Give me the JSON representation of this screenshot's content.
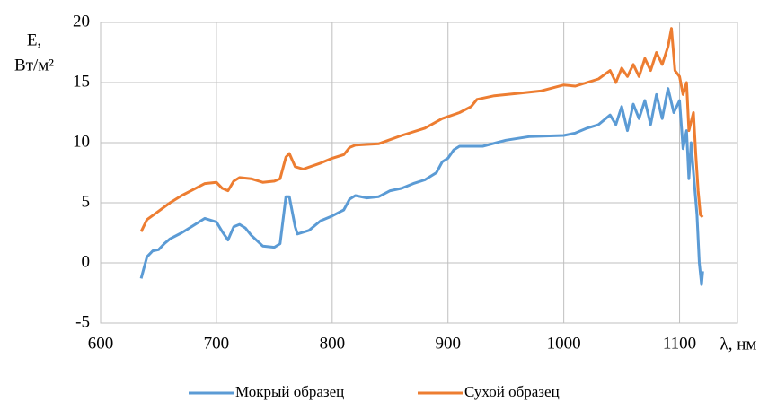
{
  "chart_data": {
    "type": "line",
    "ylabel": [
      "Е,",
      "Вт/м²"
    ],
    "xlabel": "λ, нм",
    "xlim": [
      600,
      1150
    ],
    "xticks": [
      600,
      700,
      800,
      900,
      1000,
      1100
    ],
    "ylim": [
      -5,
      20
    ],
    "yticks": [
      -5,
      0,
      5,
      10,
      15,
      20
    ],
    "grid": true,
    "legend": "bottom",
    "series": [
      {
        "name": "Мокрый образец",
        "color": "#5b9bd5",
        "x": [
          635,
          640,
          645,
          650,
          655,
          660,
          670,
          680,
          690,
          700,
          705,
          710,
          715,
          720,
          725,
          730,
          740,
          750,
          755,
          760,
          763,
          768,
          770,
          780,
          790,
          800,
          810,
          815,
          820,
          830,
          840,
          850,
          860,
          870,
          880,
          890,
          895,
          900,
          905,
          910,
          930,
          950,
          970,
          1000,
          1010,
          1020,
          1030,
          1040,
          1045,
          1050,
          1055,
          1060,
          1065,
          1070,
          1075,
          1080,
          1085,
          1090,
          1095,
          1100,
          1103,
          1106,
          1108,
          1110,
          1112,
          1115,
          1117,
          1119,
          1120
        ],
        "values": [
          -1.3,
          0.5,
          1.0,
          1.1,
          1.6,
          2.0,
          2.5,
          3.1,
          3.7,
          3.4,
          2.6,
          1.9,
          3.0,
          3.2,
          2.9,
          2.3,
          1.4,
          1.3,
          1.6,
          5.5,
          5.5,
          3.0,
          2.4,
          2.7,
          3.5,
          3.9,
          4.4,
          5.3,
          5.6,
          5.4,
          5.5,
          6.0,
          6.2,
          6.6,
          6.9,
          7.5,
          8.4,
          8.7,
          9.4,
          9.7,
          9.7,
          10.2,
          10.5,
          10.6,
          10.8,
          11.2,
          11.5,
          12.3,
          11.5,
          13.0,
          11.0,
          13.2,
          12.0,
          13.5,
          11.5,
          14.0,
          12.0,
          14.5,
          12.5,
          13.5,
          9.5,
          11.0,
          7.0,
          10.0,
          7.5,
          4.0,
          0,
          -1.8,
          -0.7
        ]
      },
      {
        "name": "Сухой образец",
        "color": "#ed7d31",
        "x": [
          635,
          640,
          650,
          660,
          670,
          680,
          690,
          700,
          705,
          710,
          715,
          720,
          730,
          740,
          750,
          755,
          760,
          763,
          768,
          775,
          790,
          800,
          810,
          815,
          820,
          840,
          860,
          880,
          895,
          910,
          920,
          925,
          940,
          960,
          980,
          1000,
          1010,
          1020,
          1030,
          1040,
          1045,
          1050,
          1055,
          1060,
          1065,
          1070,
          1075,
          1080,
          1085,
          1090,
          1093,
          1096,
          1100,
          1103,
          1106,
          1108,
          1112,
          1114,
          1116,
          1118,
          1120
        ],
        "values": [
          2.6,
          3.6,
          4.3,
          5.0,
          5.6,
          6.1,
          6.6,
          6.7,
          6.2,
          6.0,
          6.8,
          7.1,
          7.0,
          6.7,
          6.8,
          7.0,
          8.8,
          9.1,
          8.0,
          7.8,
          8.3,
          8.7,
          9.0,
          9.6,
          9.8,
          9.9,
          10.6,
          11.2,
          12.0,
          12.5,
          13.0,
          13.6,
          13.9,
          14.1,
          14.3,
          14.8,
          14.7,
          15.0,
          15.3,
          16.0,
          15.0,
          16.2,
          15.5,
          16.5,
          15.5,
          17.0,
          16.0,
          17.5,
          16.5,
          18.0,
          19.5,
          16.0,
          15.5,
          14.0,
          15.0,
          11.0,
          12.5,
          9.0,
          6.0,
          4.0,
          3.8
        ]
      }
    ]
  }
}
